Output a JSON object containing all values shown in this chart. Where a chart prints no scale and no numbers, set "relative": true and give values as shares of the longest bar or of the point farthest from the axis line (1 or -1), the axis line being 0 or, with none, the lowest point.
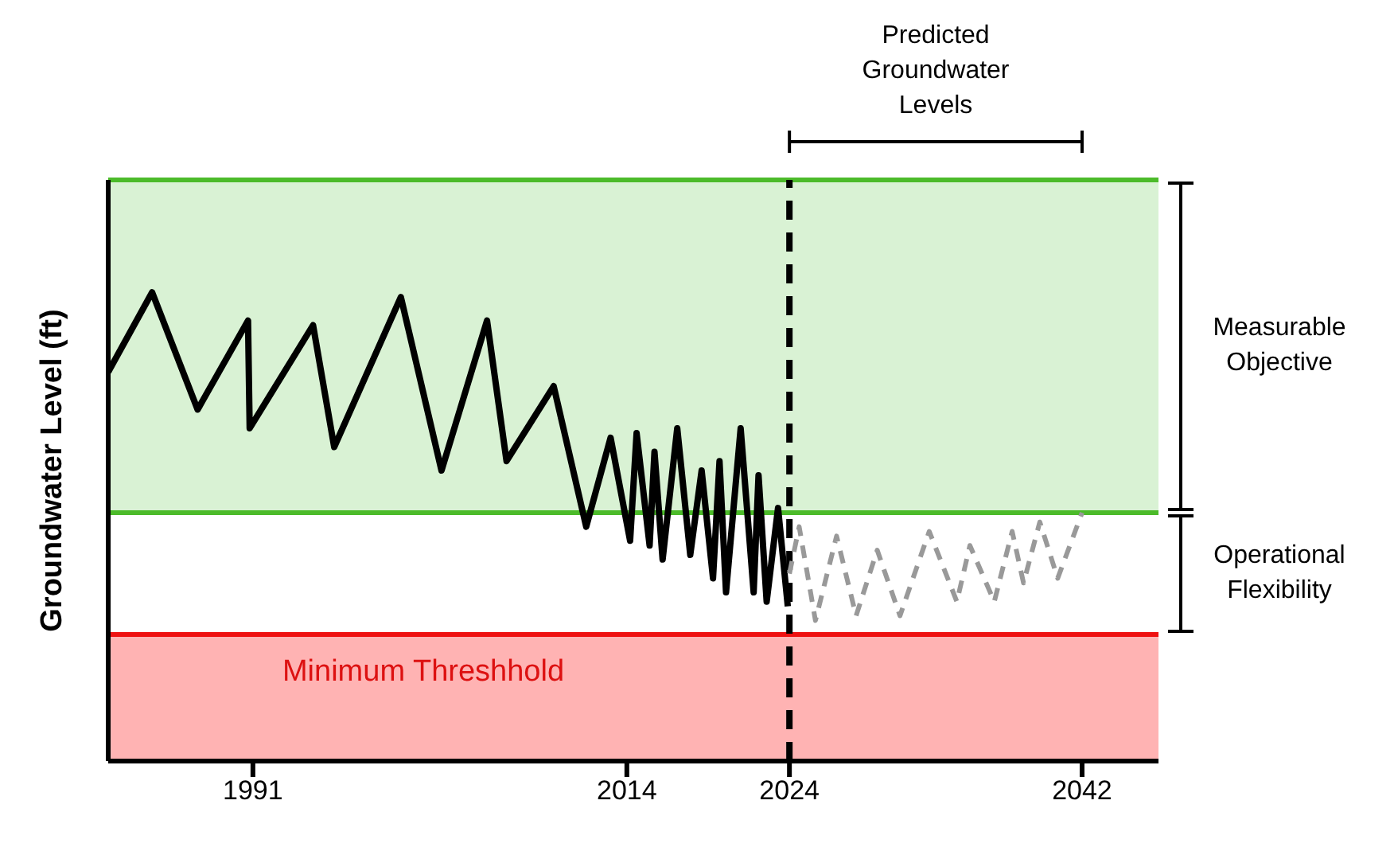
{
  "chart_data": {
    "type": "line",
    "relative": true,
    "ylabel": "Groundwater Level (ft)",
    "xlim": [
      1982.1,
      2046.7
    ],
    "xticks": [
      1991,
      2014,
      2024,
      2042
    ],
    "series": [
      {
        "color": "#000000",
        "line_style": "solid",
        "x": [
          1982.1,
          1984.8,
          1987.6,
          1990.7,
          1990.8,
          1994.7,
          1996.0,
          2000.1,
          2002.6,
          2005.4,
          2006.6,
          2009.5,
          2011.5,
          2013.0,
          2014.2,
          2014.6,
          2015.4,
          2015.7,
          2016.2,
          2017.1,
          2017.9,
          2018.6,
          2019.3,
          2019.7,
          2020.1,
          2021.0,
          2021.8,
          2022.1,
          2022.6,
          2023.3,
          2023.9
        ],
        "values": [
          0.83,
          1,
          0.75,
          0.94,
          0.71,
          0.93,
          0.67,
          0.99,
          0.62,
          0.94,
          0.64,
          0.8,
          0.5,
          0.69,
          0.47,
          0.7,
          0.46,
          0.66,
          0.43,
          0.71,
          0.44,
          0.62,
          0.39,
          0.64,
          0.36,
          0.71,
          0.36,
          0.61,
          0.34,
          0.54,
          0.33
        ]
      },
      {
        "color": "#999999",
        "line_style": "dashed",
        "x": [
          2024.0,
          2024.6,
          2025.6,
          2026.9,
          2028.1,
          2029.4,
          2030.8,
          2032.6,
          2034.3,
          2035.1,
          2036.6,
          2037.7,
          2038.4,
          2039.4,
          2040.5,
          2042.0
        ],
        "values": [
          0.4,
          0.5,
          0.3,
          0.48,
          0.31,
          0.45,
          0.31,
          0.49,
          0.34,
          0.46,
          0.34,
          0.49,
          0.38,
          0.51,
          0.39,
          0.53
        ]
      }
    ],
    "bands": [
      {
        "axis": "y",
        "from": 0.53,
        "to": 1.24,
        "label": "Measurable Objective",
        "color": "#d9f2d4"
      },
      {
        "axis": "y",
        "from": 0,
        "to": 0.27,
        "label": "Minimum Threshhold",
        "color": "#ffb3b3"
      }
    ],
    "ref_lines": [
      {
        "axis": "y",
        "value": 1.24,
        "color": "#4cbb2a",
        "line_style": "solid"
      },
      {
        "axis": "y",
        "value": 0.53,
        "color": "#4cbb2a",
        "line_style": "solid"
      },
      {
        "axis": "y",
        "value": 0.27,
        "color": "#ee1111",
        "line_style": "solid"
      },
      {
        "axis": "x",
        "value": 2024,
        "color": "#000000",
        "line_style": "dashed"
      }
    ],
    "annotations": [
      "Predicted Groundwater Levels",
      "Operational Flexibility"
    ],
    "marker": "none",
    "grid": false
  }
}
